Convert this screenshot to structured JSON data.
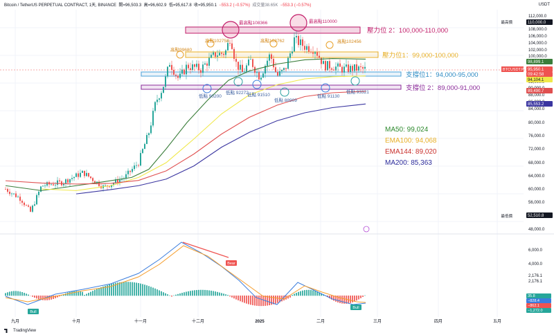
{
  "header": {
    "symbol": "Bitcoin / TetherUS PERPETUAL CONTRACT, 1天, BINANCE",
    "open": "開=96,503.3",
    "high": "高=96,602.9",
    "low": "低=95,617.8",
    "close": "收=95,950.1",
    "change": "−553.2 (−0.57%)",
    "volume": "成交量38.65K",
    "vol_change": "−553.3 (−0.57%)",
    "currency": "USDT"
  },
  "footer": {
    "brand": "TradingView"
  },
  "colors": {
    "up": "#26a69a",
    "down": "#ef5350",
    "ma50": "#3a7d3a",
    "ema100": "#f0e84a",
    "ema144": "#e05050",
    "ma200": "#3a35a0",
    "resist2": "#c21e6a",
    "resist1": "#e8b028",
    "support1": "#4aa0d8",
    "support2": "#8a2a9a",
    "macd": "#3b7ddd",
    "signal": "#f59c2a"
  },
  "chart_data": {
    "type": "candlestick",
    "x_labels": [
      "九月",
      "十月",
      "十一月",
      "十二月",
      "2025",
      "二月",
      "三月",
      "四月",
      "五月"
    ],
    "y_range": [
      47000,
      113000
    ],
    "y_ticks": [
      "112,000.0",
      "110,000.0",
      "108,000.0",
      "106,000.0",
      "104,000.0",
      "102,000.0",
      "100,000.0",
      "98,000.0",
      "96,000.0",
      "94,000.0",
      "92,000.0",
      "90,000.0",
      "88,000.0",
      "86,000.0",
      "84,000.0",
      "80,000.0",
      "76,000.0",
      "72,000.0",
      "68,000.0",
      "64,000.0",
      "60,000.0",
      "56,000.0",
      "52,000.0",
      "48,000.0"
    ],
    "zones": [
      {
        "name": "resist2",
        "label": "壓力位 2：100,000-110,000"
      },
      {
        "name": "resist1",
        "label": "壓力位1：99,000-100,000"
      },
      {
        "name": "support1",
        "label": "支撐位1：94,000-95,000"
      },
      {
        "name": "support2",
        "label": "支撐位 2：89,000-91,000"
      }
    ],
    "top_annotations": [
      "最高點108366",
      "最高點110000"
    ],
    "high_points": [
      "高點99680",
      "高點102758",
      "高點102762",
      "高點102456"
    ],
    "low_points": [
      "低點 90200",
      "低點 92272",
      "低點 91510",
      "低點 88909",
      "低點 91130",
      "低點 93321"
    ],
    "legend": [
      {
        "name": "MA50",
        "text": "MA50: 99,024"
      },
      {
        "name": "EMA100",
        "text": "EMA100: 94,068"
      },
      {
        "name": "EMA144",
        "text": "EMA144: 89,020"
      },
      {
        "name": "MA200",
        "text": "MA200: 85,363"
      }
    ],
    "price_tags": {
      "high_all": {
        "label": "最高價",
        "value": "110,000.0"
      },
      "ma50": "98,899.1",
      "last": {
        "symbol": "BTCUSDT.P",
        "value": "95,950.1",
        "timer": "09:42:58"
      },
      "ema100": "94,104.1",
      "ema144": "89,490.7",
      "ma200": "85,553.2",
      "low_all": {
        "label": "最低價",
        "value": "52,510.8"
      }
    },
    "macd": {
      "y_ticks": [
        "6,000.0",
        "4,000.0",
        "2,176.1",
        "2,176.1",
        "0",
        "-2,000.0"
      ],
      "tags": [
        "35.8",
        "−828.4",
        "−862.1",
        "−1,272.0"
      ],
      "signals": [
        "Bull",
        "Bear",
        "Bull"
      ]
    }
  }
}
